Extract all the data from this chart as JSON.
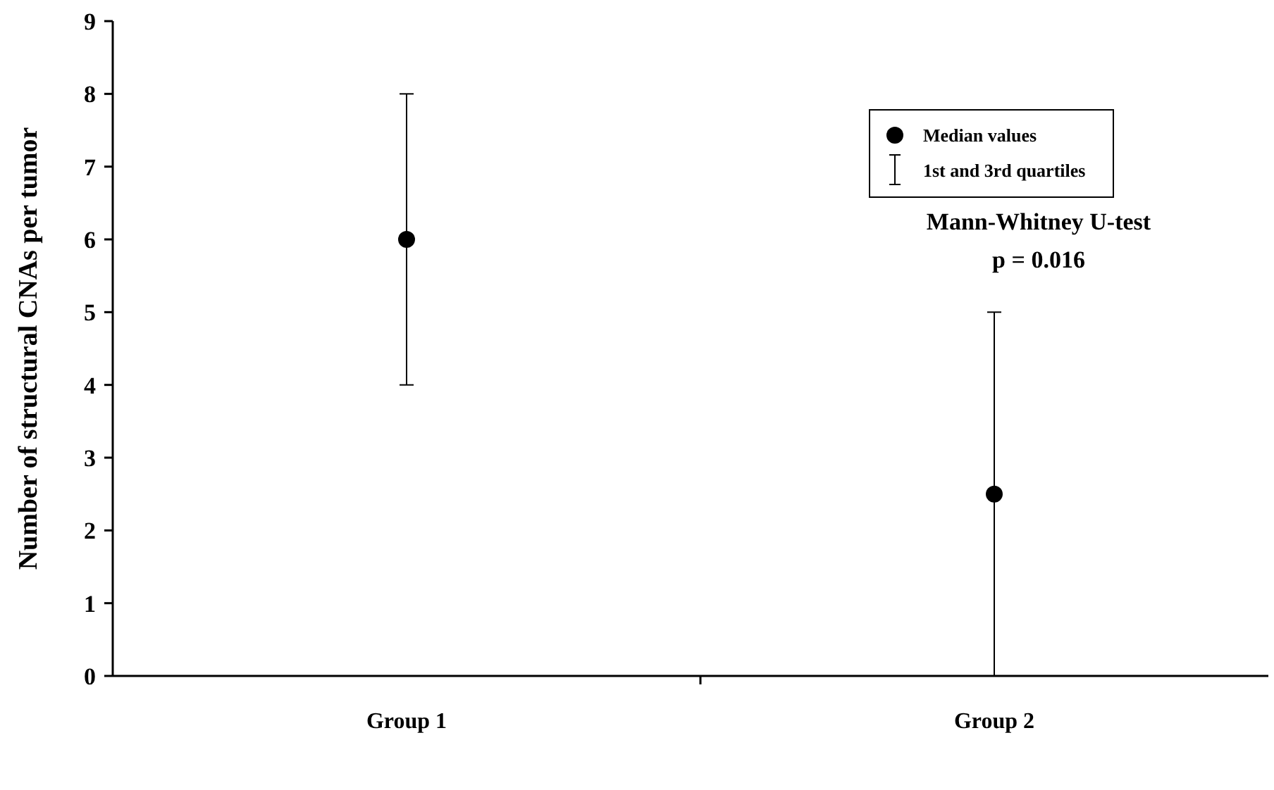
{
  "chart_data": {
    "type": "scatter",
    "ylabel": "Number of structural CNAs per tumor",
    "categories": [
      "Group 1",
      "Group 2"
    ],
    "series": [
      {
        "name": "Median values",
        "color": "#000000",
        "values": [
          6,
          2.5
        ],
        "errors": [
          [
            4,
            8
          ],
          [
            0,
            5
          ]
        ]
      }
    ],
    "ylim": [
      0,
      9
    ],
    "yticks": [
      0,
      1,
      2,
      3,
      4,
      5,
      6,
      7,
      8,
      9
    ],
    "marker": "circle",
    "grid": false,
    "legend": "top right",
    "annotations": [
      "1st and 3rd quartiles",
      "Mann-Whitney U-test",
      "p = 0.016"
    ]
  }
}
